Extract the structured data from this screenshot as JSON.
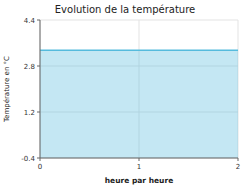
{
  "chart_data": {
    "type": "area",
    "title": "Evolution de la température",
    "x_label": "heure par heure",
    "y_label": "Température en °C",
    "x": [
      0,
      2
    ],
    "values": [
      3.35,
      3.35
    ],
    "baseline": -0.4,
    "color": "#55bbdd",
    "xlim": [
      0,
      2
    ],
    "xticks": [
      0,
      1,
      2
    ],
    "ylim": [
      -0.4,
      4.4
    ],
    "yticks": [
      -0.4,
      1.2,
      2.8,
      4.4
    ],
    "grid": true
  }
}
